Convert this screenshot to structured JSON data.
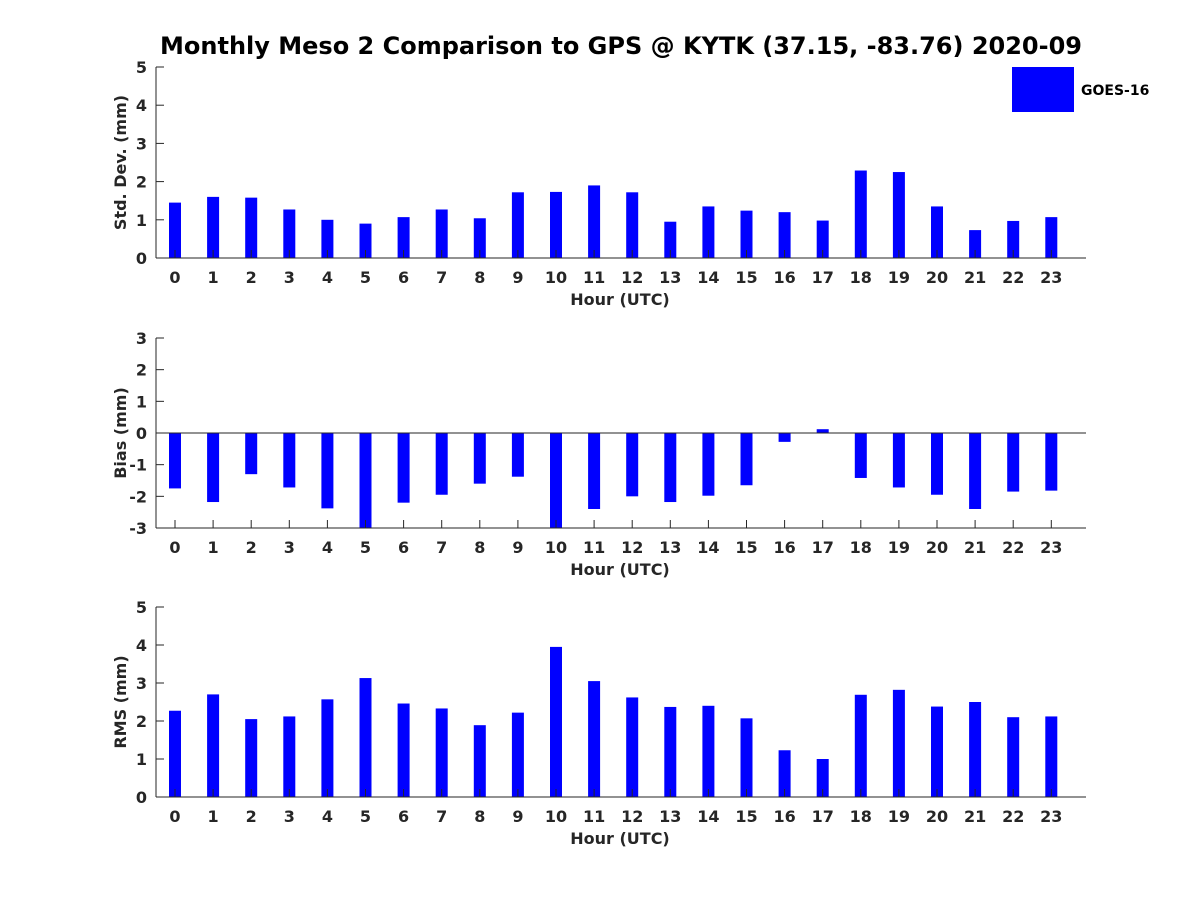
{
  "chart_data": {
    "title": "Monthly Meso 2 Comparison to GPS @ KYTK (37.15, -83.76) 2020-09",
    "legend": {
      "label": "GOES-16",
      "color": "#0000ff",
      "placement": "top-right"
    },
    "panels": [
      {
        "type": "bar",
        "ylabel": "Std. Dev. (mm)",
        "xlabel": "Hour (UTC)",
        "ylim": [
          0,
          5
        ],
        "yticks": [
          0,
          1,
          2,
          3,
          4,
          5
        ],
        "categories": [
          "0",
          "1",
          "2",
          "3",
          "4",
          "5",
          "6",
          "7",
          "8",
          "9",
          "10",
          "11",
          "12",
          "13",
          "14",
          "15",
          "16",
          "17",
          "18",
          "19",
          "20",
          "21",
          "22",
          "23"
        ],
        "series": [
          {
            "name": "GOES-16",
            "color": "#0000ff",
            "values": [
              1.45,
              1.6,
              1.58,
              1.27,
              1.0,
              0.9,
              1.07,
              1.27,
              1.04,
              1.72,
              1.73,
              1.9,
              1.72,
              0.95,
              1.35,
              1.24,
              1.2,
              0.98,
              2.29,
              2.25,
              1.35,
              0.73,
              0.97,
              1.07
            ]
          }
        ]
      },
      {
        "type": "bar",
        "ylabel": "Bias (mm)",
        "xlabel": "Hour (UTC)",
        "ylim": [
          -3,
          3
        ],
        "yticks": [
          -3,
          -2,
          -1,
          0,
          1,
          2,
          3
        ],
        "zero_line": true,
        "categories": [
          "0",
          "1",
          "2",
          "3",
          "4",
          "5",
          "6",
          "7",
          "8",
          "9",
          "10",
          "11",
          "12",
          "13",
          "14",
          "15",
          "16",
          "17",
          "18",
          "19",
          "20",
          "21",
          "22",
          "23"
        ],
        "series": [
          {
            "name": "GOES-16",
            "color": "#0000ff",
            "values": [
              -1.75,
              -2.18,
              -1.3,
              -1.72,
              -2.38,
              -3.0,
              -2.2,
              -1.95,
              -1.6,
              -1.38,
              -3.0,
              -2.4,
              -2.0,
              -2.18,
              -1.98,
              -1.65,
              -0.28,
              0.12,
              -1.42,
              -1.72,
              -1.95,
              -2.4,
              -1.85,
              -1.82
            ]
          }
        ]
      },
      {
        "type": "bar",
        "ylabel": "RMS (mm)",
        "xlabel": "Hour (UTC)",
        "ylim": [
          0,
          5
        ],
        "yticks": [
          0,
          1,
          2,
          3,
          4,
          5
        ],
        "categories": [
          "0",
          "1",
          "2",
          "3",
          "4",
          "5",
          "6",
          "7",
          "8",
          "9",
          "10",
          "11",
          "12",
          "13",
          "14",
          "15",
          "16",
          "17",
          "18",
          "19",
          "20",
          "21",
          "22",
          "23"
        ],
        "series": [
          {
            "name": "GOES-16",
            "color": "#0000ff",
            "values": [
              2.27,
              2.7,
              2.05,
              2.12,
              2.57,
              3.13,
              2.46,
              2.33,
              1.89,
              2.22,
              3.95,
              3.05,
              2.62,
              2.37,
              2.4,
              2.07,
              1.23,
              1.0,
              2.69,
              2.82,
              2.38,
              2.5,
              2.1,
              2.12
            ]
          }
        ]
      }
    ]
  }
}
